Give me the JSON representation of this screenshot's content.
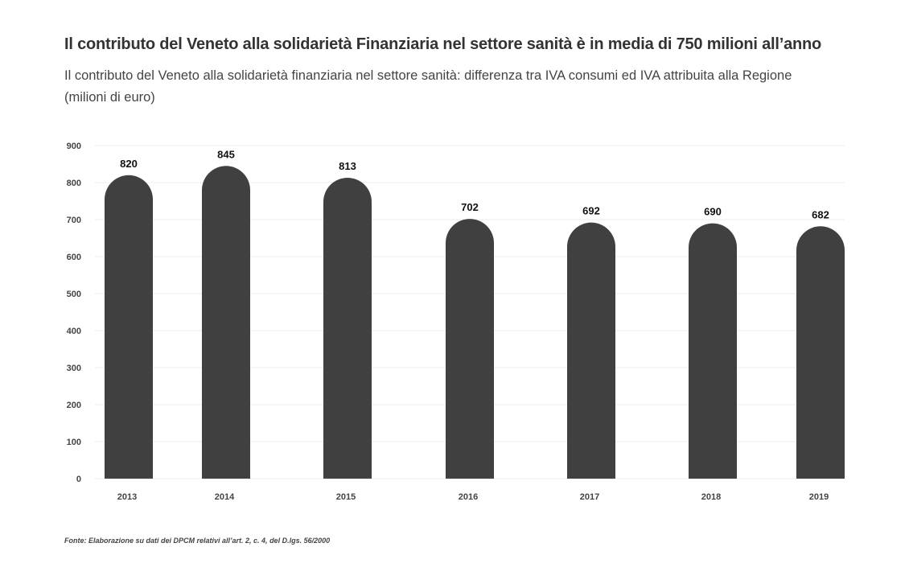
{
  "chart_data": {
    "type": "bar",
    "title": "Il contributo del Veneto alla solidarietà Finanziaria nel settore sanità è in media di 750 milioni all’anno",
    "subtitle": "Il contributo del Veneto alla solidarietà finanziaria nel settore sanità: differenza tra IVA consumi ed IVA attribuita alla Regione (milioni di euro)",
    "categories": [
      "2013",
      "2014",
      "2015",
      "2016",
      "2017",
      "2018",
      "2019"
    ],
    "values": [
      820,
      845,
      813,
      702,
      692,
      690,
      682
    ],
    "data_labels": [
      "820",
      "845",
      "813",
      "702",
      "692",
      "690",
      "682"
    ],
    "yticks": [
      "0",
      "100",
      "200",
      "300",
      "400",
      "500",
      "600",
      "700",
      "800",
      "900"
    ],
    "ylim": [
      0,
      900
    ],
    "xlabel": "",
    "ylabel": "",
    "grid": true,
    "legend": "none",
    "colors": {
      "bar": "#404040",
      "grid": "#eeeeee",
      "text": "#333333"
    }
  },
  "source": "Fonte: Elaborazione su dati dei DPCM relativi all’art. 2, c. 4, del D.lgs. 56/2000"
}
